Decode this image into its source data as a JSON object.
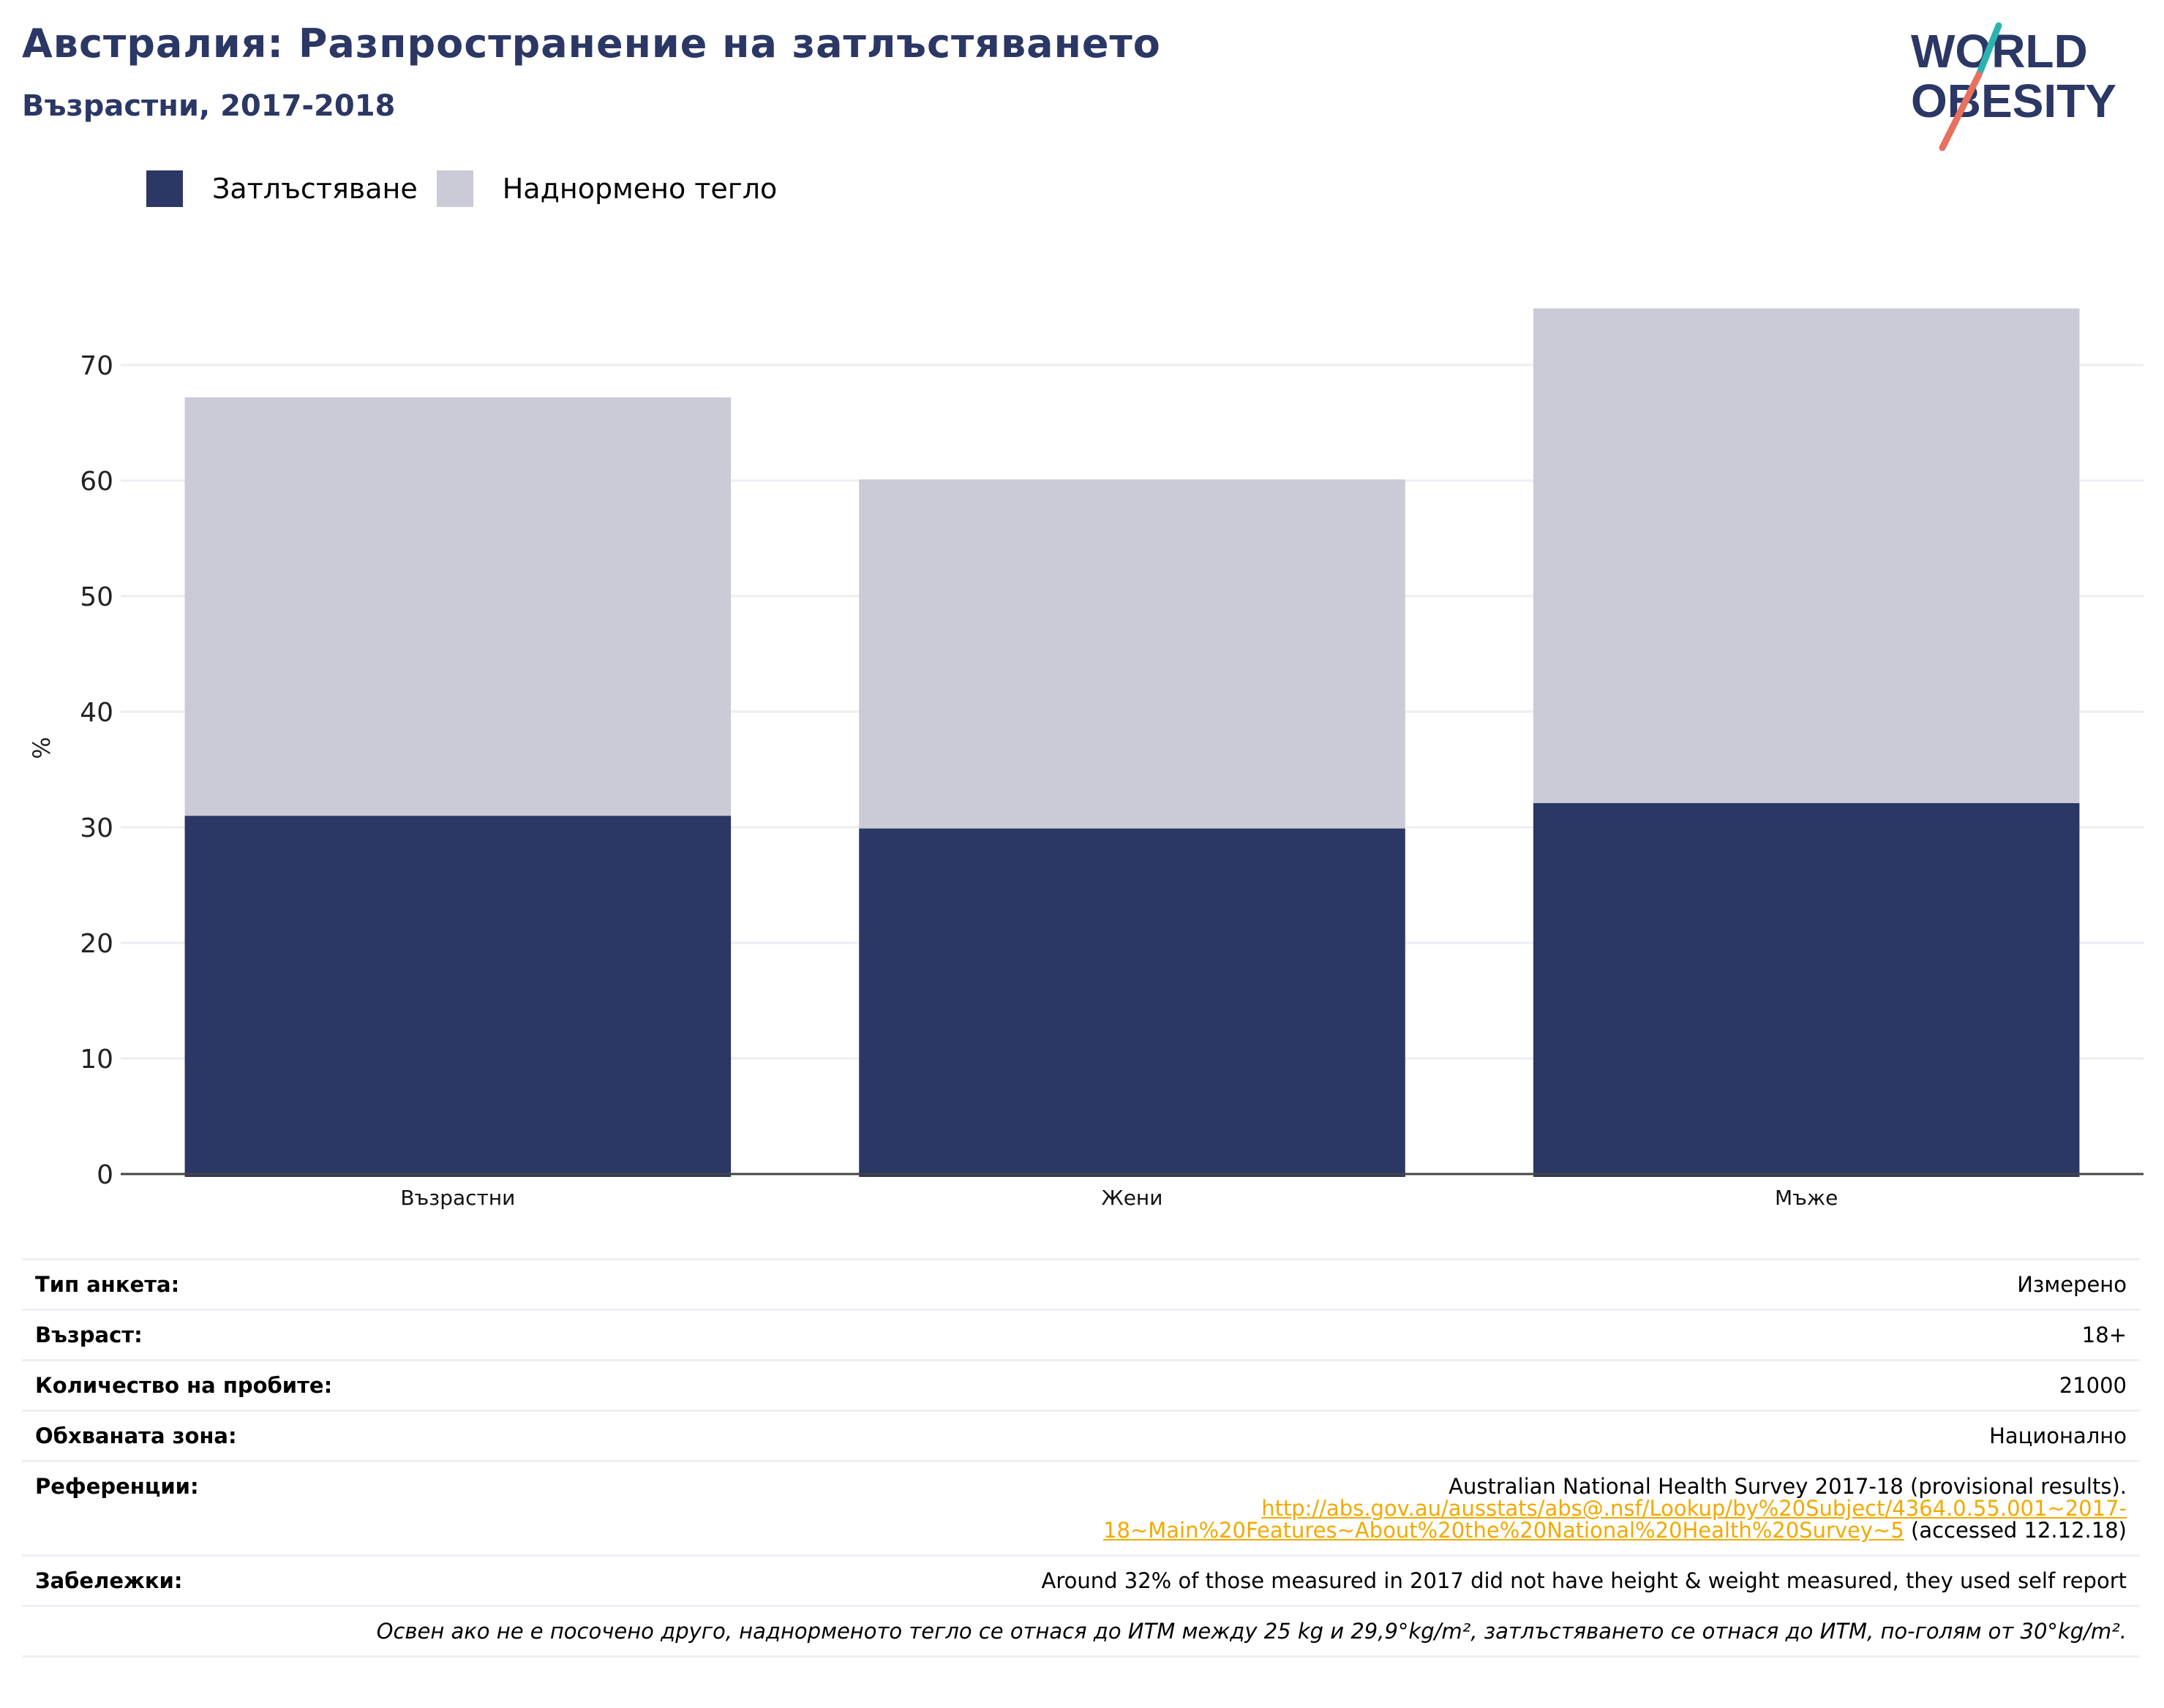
{
  "header": {
    "title": "Австралия: Разпространение на затлъстяването",
    "subtitle": "Възрастни, 2017-2018"
  },
  "logo": {
    "line1": "WORLD",
    "line2": "OBESITY",
    "colors": {
      "text": "#2b3764",
      "slash_top": "#2bb3b1",
      "slash_bottom": "#e8705f"
    }
  },
  "legend": {
    "items": [
      {
        "label": "Затлъстяване",
        "color": "#2b3764"
      },
      {
        "label": "Наднормено тегло",
        "color": "#cacbd6"
      }
    ]
  },
  "chart_data": {
    "type": "bar",
    "stacked": true,
    "categories": [
      "Възрастни",
      "Жени",
      "Мъже"
    ],
    "series": [
      {
        "name": "Затлъстяване",
        "color": "#2b3764",
        "values": [
          31.0,
          29.9,
          32.1
        ]
      },
      {
        "name": "Наднормено тегло",
        "color": "#cacbd6",
        "values": [
          36.2,
          30.2,
          42.8
        ]
      }
    ],
    "ylabel": "%",
    "xlabel": "",
    "ylim": [
      0,
      75
    ],
    "yticks": [
      0,
      10,
      20,
      30,
      40,
      50,
      60,
      70
    ],
    "grid": true,
    "legend_position": "top-left"
  },
  "meta": {
    "rows": [
      {
        "key": "Тип анкета:",
        "value": "Измерено"
      },
      {
        "key": "Възраст:",
        "value": "18+"
      },
      {
        "key": "Количество на пробите:",
        "value": "21000"
      },
      {
        "key": "Обхваната зона:",
        "value": "Национално"
      }
    ],
    "references": {
      "key": "Референции:",
      "text": "Australian National Health Survey 2017-18 (provisional results).",
      "link_line1": "http://abs.gov.au/ausstats/abs@.nsf/Lookup/by%20Subject/4364.0.55.001~2017-",
      "link_line2": "18~Main%20Features~About%20the%20National%20Health%20Survey~5",
      "accessed": " (accessed 12.12.18)"
    },
    "notes": {
      "key": "Забележки:",
      "value": "Around 32% of those measured in 2017 did not have height & weight measured, they used self report"
    },
    "footnote": "Освен ако не е посочено друго, наднорменото тегло се отнася до ИТМ между 25 kg и 29,9°kg/m², затлъстяването се отнася до ИТМ, по-голям от 30°kg/m²."
  }
}
